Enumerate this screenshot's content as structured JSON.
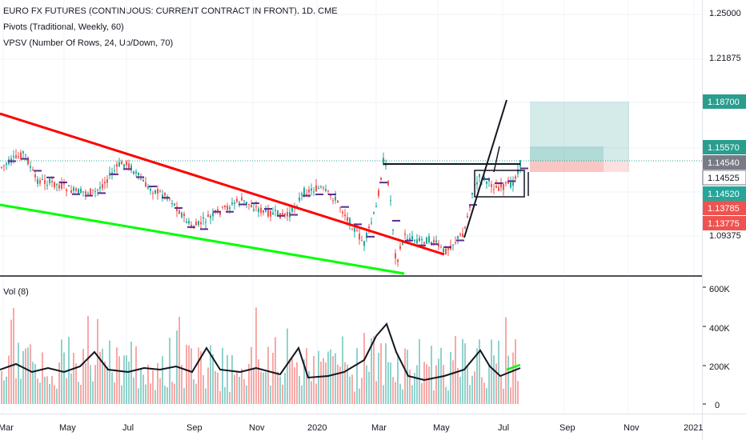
{
  "legend": {
    "title": "EURO FX FUTURES (CONTINUOUS: CURRENT CONTRACT IN FRONT), 1D, CME",
    "pivots": "Pivots (Traditional, Weekly, 60)",
    "vpsv": "VPSV (Number Of Rows, 24, Up/Down, 70)",
    "volume": "Vol (8)"
  },
  "price_axis": {
    "ticks": [
      "1.25000",
      "1.21875",
      "1.09375"
    ],
    "badges": [
      {
        "text": "1.18700",
        "color": "#2a9d8f"
      },
      {
        "text": "1.15570",
        "color": "#2a9d8f"
      },
      {
        "text": "1.14540",
        "color": "#787b86"
      },
      {
        "text": "1.14525",
        "color": "#ffffff",
        "text_color": "#131722"
      },
      {
        "text": "1.14520",
        "color": "#26a69a"
      },
      {
        "text": "1.13785",
        "color": "#ef5350"
      },
      {
        "text": "1.13775",
        "color": "#ef5350"
      }
    ]
  },
  "volume_axis": {
    "ticks": [
      "600K",
      "400K",
      "200K",
      "0"
    ]
  },
  "time_axis": {
    "labels": [
      "Mar",
      "May",
      "Jul",
      "Sep",
      "Nov",
      "2020",
      "Mar",
      "May",
      "Jul",
      "Sep",
      "Nov",
      "2021"
    ]
  },
  "colors": {
    "up": "#26a69a",
    "down": "#ef5350",
    "trend_red": "#ff0000",
    "trend_green": "#00ff00",
    "pivot": "#5b2c8f",
    "grid": "#f0f3fa",
    "target": "#2a9d8f"
  }
}
